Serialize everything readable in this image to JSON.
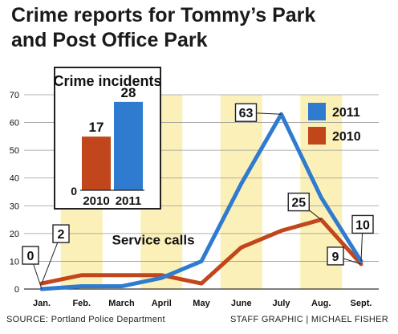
{
  "title": "Crime reports for Tommy’s Park and Post Office Park",
  "title_line1": "Crime reports for Tommy’s Park",
  "title_line2": "and Post Office Park",
  "footer": {
    "source": "SOURCE: Portland Police Department",
    "credit": "STAFF GRAPHIC | MICHAEL FISHER"
  },
  "colors": {
    "series_2011": "#2e7bcf",
    "series_2010": "#c2461c",
    "highlight_band": "#fbf0b8",
    "grid": "#9a9a9a"
  },
  "chart_data": [
    {
      "type": "line",
      "title": "",
      "annotation": "Service calls",
      "categories": [
        "Jan.",
        "Feb.",
        "March",
        "April",
        "May",
        "June",
        "July",
        "Aug.",
        "Sept."
      ],
      "ylim": [
        0,
        70
      ],
      "yticks": [
        0,
        10,
        20,
        30,
        40,
        50,
        60,
        70
      ],
      "grid": true,
      "legend_position": "top-right",
      "highlighted_categories": [
        "Feb.",
        "April",
        "June",
        "Aug."
      ],
      "series": [
        {
          "name": "2011",
          "values": [
            0,
            1,
            1,
            4,
            10,
            38,
            63,
            33,
            10
          ],
          "labels": {
            "0": "0",
            "6": "63",
            "8": "10"
          }
        },
        {
          "name": "2010",
          "values": [
            2,
            5,
            5,
            5,
            2,
            15,
            21,
            25,
            9
          ],
          "labels": {
            "0": "2",
            "7": "25",
            "8": "9"
          }
        }
      ]
    },
    {
      "type": "bar",
      "title": "Crime incidents",
      "categories": [
        "2010",
        "2011"
      ],
      "values": [
        17,
        28
      ],
      "baseline_label": "0"
    }
  ]
}
